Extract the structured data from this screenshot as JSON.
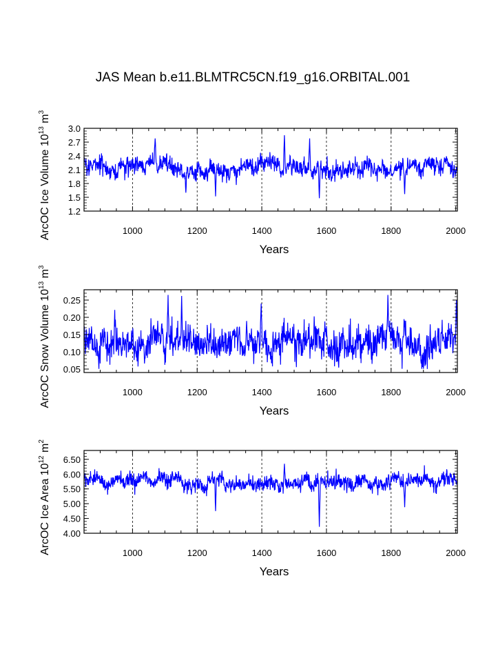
{
  "figure": {
    "title": "JAS Mean b.e11.BLMTRC5CN.f19_g16.ORBITAL.001",
    "line_color": "#0000ff"
  },
  "chart_data": [
    {
      "type": "line",
      "ylabel_main": "ArcOC Ice Volume 10",
      "ylabel_exp": "13",
      "ylabel_tail": " m",
      "ylabel_tail_exp": "3",
      "xlabel": "Years",
      "xlim": [
        850,
        2005
      ],
      "ylim": [
        1.2,
        3.0
      ],
      "yticks": [
        1.2,
        1.5,
        1.8,
        2.1,
        2.4,
        2.7,
        3.0
      ],
      "ytick_labels": [
        "1.2",
        "1.5",
        "1.8",
        "2.1",
        "2.4",
        "2.7",
        "3.0"
      ],
      "xticks": [
        1000,
        1200,
        1400,
        1600,
        1800,
        2000
      ],
      "xtick_labels": [
        "1000",
        "1200",
        "1400",
        "1600",
        "1800",
        "2000"
      ],
      "grid_x": [
        1000,
        1200,
        1400,
        1600,
        1800
      ],
      "series_summary": {
        "name": "Ice Volume",
        "mean": 2.15,
        "std": 0.17,
        "min": 1.48,
        "max": 2.85,
        "start": 850,
        "end": 2005,
        "seed": 7
      },
      "features": [
        [
          1070,
          2.78
        ],
        [
          1165,
          1.6
        ],
        [
          1257,
          1.52
        ],
        [
          1470,
          2.85
        ],
        [
          1548,
          2.78
        ],
        [
          1578,
          1.48
        ],
        [
          1842,
          1.57
        ]
      ]
    },
    {
      "type": "line",
      "ylabel_main": "ArcOC Snow Volume 10",
      "ylabel_exp": "13",
      "ylabel_tail": " m",
      "ylabel_tail_exp": "3",
      "xlabel": "Years",
      "xlim": [
        850,
        2005
      ],
      "ylim": [
        0.04,
        0.28
      ],
      "yticks": [
        0.05,
        0.1,
        0.15,
        0.2,
        0.25
      ],
      "ytick_labels": [
        "0.05",
        "0.10",
        "0.15",
        "0.20",
        "0.25"
      ],
      "xticks": [
        1000,
        1200,
        1400,
        1600,
        1800,
        2000
      ],
      "xtick_labels": [
        "1000",
        "1200",
        "1400",
        "1600",
        "1800",
        "2000"
      ],
      "grid_x": [
        1000,
        1200,
        1400,
        1600,
        1800
      ],
      "series_summary": {
        "name": "Snow Volume",
        "mean": 0.13,
        "std": 0.04,
        "min": 0.05,
        "max": 0.265,
        "start": 850,
        "end": 2005,
        "seed": 19
      },
      "features": [
        [
          1110,
          0.265
        ],
        [
          1152,
          0.262
        ],
        [
          1398,
          0.24
        ],
        [
          1790,
          0.265
        ],
        [
          2002,
          0.25
        ]
      ]
    },
    {
      "type": "line",
      "ylabel_main": "ArcOC Ice Area 10",
      "ylabel_exp": "12",
      "ylabel_tail": " m",
      "ylabel_tail_exp": "2",
      "xlabel": "Years",
      "xlim": [
        850,
        2005
      ],
      "ylim": [
        4.0,
        6.8
      ],
      "yticks": [
        4.0,
        4.5,
        5.0,
        5.5,
        6.0,
        6.5
      ],
      "ytick_labels": [
        "4.00",
        "4.50",
        "5.00",
        "5.50",
        "6.00",
        "6.50"
      ],
      "xticks": [
        1000,
        1200,
        1400,
        1600,
        1800,
        2000
      ],
      "xtick_labels": [
        "1000",
        "1200",
        "1400",
        "1600",
        "1800",
        "2000"
      ],
      "grid_x": [
        1000,
        1200,
        1400,
        1600,
        1800
      ],
      "series_summary": {
        "name": "Ice Area",
        "mean": 5.75,
        "std": 0.22,
        "min": 4.2,
        "max": 6.4,
        "start": 850,
        "end": 2005,
        "seed": 31
      },
      "features": [
        [
          1257,
          4.75
        ],
        [
          1578,
          4.22
        ],
        [
          1842,
          4.88
        ],
        [
          1470,
          6.35
        ]
      ]
    }
  ]
}
